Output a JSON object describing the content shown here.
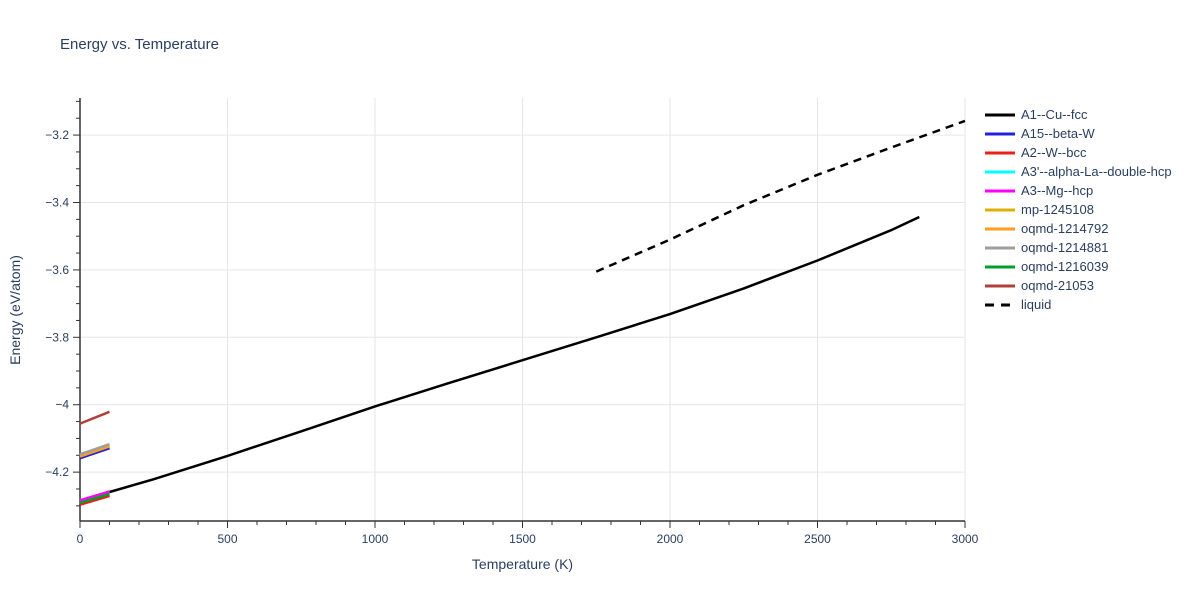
{
  "chart_data": {
    "type": "line",
    "title": "Energy vs. Temperature",
    "xlabel": "Temperature (K)",
    "ylabel": "Energy (eV/atom)",
    "xlim": [
      0,
      3000
    ],
    "ylim": [
      -4.345,
      -3.09
    ],
    "x_ticks": {
      "major": [
        0,
        500,
        1000,
        1500,
        2000,
        2500,
        3000
      ],
      "labels": [
        "0",
        "500",
        "1000",
        "1500",
        "2000",
        "2500",
        "3000"
      ],
      "minor_step": 100
    },
    "y_ticks": {
      "major": [
        -4.2,
        -4.0,
        -3.8,
        -3.6,
        -3.4,
        -3.2
      ],
      "labels": [
        "−4.2",
        "−4",
        "−3.8",
        "−3.6",
        "−3.4",
        "−3.2"
      ],
      "minor_step": 0.05
    },
    "grid": {
      "show": true,
      "color": "#e6e6e6"
    },
    "axis_color": "#333333",
    "text_color": "#2a3f5f",
    "legend_position": "right",
    "series": [
      {
        "name": "A1--Cu--fcc",
        "color": "#000000",
        "dash": "solid",
        "width": 2.5,
        "points": [
          [
            0,
            -4.285
          ],
          [
            100,
            -4.259
          ],
          [
            250,
            -4.221
          ],
          [
            500,
            -4.152
          ],
          [
            750,
            -4.079
          ],
          [
            1000,
            -4.005
          ],
          [
            1250,
            -3.936
          ],
          [
            1500,
            -3.868
          ],
          [
            1750,
            -3.8
          ],
          [
            2000,
            -3.731
          ],
          [
            2250,
            -3.655
          ],
          [
            2500,
            -3.572
          ],
          [
            2750,
            -3.482
          ],
          [
            2845,
            -3.443
          ]
        ]
      },
      {
        "name": "A15--beta-W",
        "color": "#2020df",
        "dash": "solid",
        "width": 3,
        "points": [
          [
            0,
            -4.158
          ],
          [
            100,
            -4.128
          ]
        ]
      },
      {
        "name": "A2--W--bcc",
        "color": "#ea2118",
        "dash": "solid",
        "width": 3,
        "points": [
          [
            0,
            -4.296
          ],
          [
            100,
            -4.27
          ]
        ]
      },
      {
        "name": "A3'--alpha-La--double-hcp",
        "color": "#00ffff",
        "dash": "solid",
        "width": 2.5,
        "points": [
          [
            0,
            -4.2845
          ],
          [
            100,
            -4.2585
          ]
        ]
      },
      {
        "name": "A3--Mg--hcp",
        "color": "#ff00ff",
        "dash": "solid",
        "width": 2.5,
        "points": [
          [
            0,
            -4.2835
          ],
          [
            100,
            -4.2575
          ]
        ]
      },
      {
        "name": "mp-1245108",
        "color": "#dfaf08",
        "dash": "solid",
        "width": 2.5,
        "points": [
          [
            0,
            -4.151
          ],
          [
            100,
            -4.121
          ]
        ]
      },
      {
        "name": "oqmd-1214792",
        "color": "#ff9d1c",
        "dash": "solid",
        "width": 2.5,
        "points": [
          [
            0,
            -4.154
          ],
          [
            100,
            -4.124
          ]
        ]
      },
      {
        "name": "oqmd-1214881",
        "color": "#9e9e9e",
        "dash": "solid",
        "width": 2.5,
        "points": [
          [
            0,
            -4.147
          ],
          [
            100,
            -4.117
          ]
        ]
      },
      {
        "name": "oqmd-1216039",
        "color": "#00a02a",
        "dash": "solid",
        "width": 2.5,
        "points": [
          [
            0,
            -4.291
          ],
          [
            100,
            -4.265
          ]
        ]
      },
      {
        "name": "oqmd-21053",
        "color": "#b24039",
        "dash": "solid",
        "width": 2.5,
        "points": [
          [
            0,
            -4.056
          ],
          [
            100,
            -4.021
          ]
        ]
      },
      {
        "name": "liquid",
        "color": "#000000",
        "dash": "dash",
        "width": 2.5,
        "points": [
          [
            1750,
            -3.605
          ],
          [
            2000,
            -3.51
          ],
          [
            2250,
            -3.408
          ],
          [
            2500,
            -3.318
          ],
          [
            2750,
            -3.237
          ],
          [
            3000,
            -3.158
          ]
        ]
      }
    ]
  }
}
